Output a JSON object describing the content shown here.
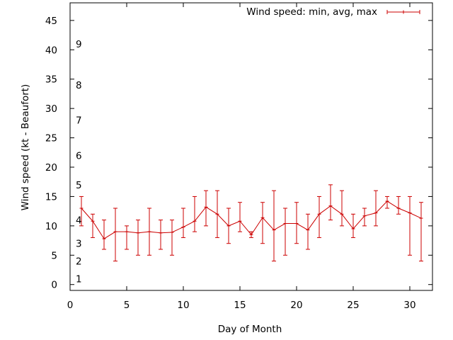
{
  "chart_data": {
    "type": "line",
    "title": "",
    "xlabel": "Day of Month",
    "ylabel": "Wind speed (kt - Beaufort)",
    "xlim": [
      0,
      32
    ],
    "ylim": [
      -1,
      48
    ],
    "xticks": [
      0,
      5,
      10,
      15,
      20,
      25,
      30
    ],
    "yticks": [
      0,
      5,
      10,
      15,
      20,
      25,
      30,
      35,
      40,
      45
    ],
    "beaufort_labels": [
      {
        "label": "1",
        "y": 1
      },
      {
        "label": "2",
        "y": 4
      },
      {
        "label": "3",
        "y": 7
      },
      {
        "label": "4",
        "y": 11
      },
      {
        "label": "5",
        "y": 17
      },
      {
        "label": "6",
        "y": 22
      },
      {
        "label": "7",
        "y": 28
      },
      {
        "label": "8",
        "y": 34
      },
      {
        "label": "9",
        "y": 41
      }
    ],
    "legend_position": "top-right",
    "grid": false,
    "series": [
      {
        "name": "Wind speed: min, avg, max",
        "color": "#cc0000",
        "x": [
          1,
          2,
          3,
          4,
          5,
          6,
          7,
          8,
          9,
          10,
          11,
          12,
          13,
          14,
          15,
          16,
          17,
          18,
          19,
          20,
          21,
          22,
          23,
          24,
          25,
          26,
          27,
          28,
          29,
          30,
          31
        ],
        "avg": [
          13,
          10.8,
          7.8,
          9,
          9,
          8.8,
          9,
          8.8,
          8.9,
          9.8,
          10.8,
          13.2,
          12,
          10,
          10.8,
          8.5,
          11.4,
          9.3,
          10.4,
          10.4,
          9.3,
          12,
          13.4,
          12,
          9.5,
          11.7,
          12.2,
          14.2,
          13,
          12.2,
          11.3
        ],
        "min": [
          10,
          8,
          6,
          4,
          6,
          5,
          5,
          6,
          5,
          8,
          9,
          10,
          8,
          7,
          9,
          8,
          7,
          4,
          5,
          7,
          6,
          8,
          11,
          10,
          8,
          10,
          10,
          13,
          12,
          5,
          4
        ],
        "max": [
          15,
          12,
          11,
          13,
          10,
          11,
          13,
          11,
          11,
          13,
          15,
          16,
          16,
          13,
          14,
          9,
          14,
          16,
          13,
          14,
          12,
          15,
          17,
          16,
          12,
          13,
          16,
          15,
          15,
          15,
          14
        ]
      }
    ]
  }
}
